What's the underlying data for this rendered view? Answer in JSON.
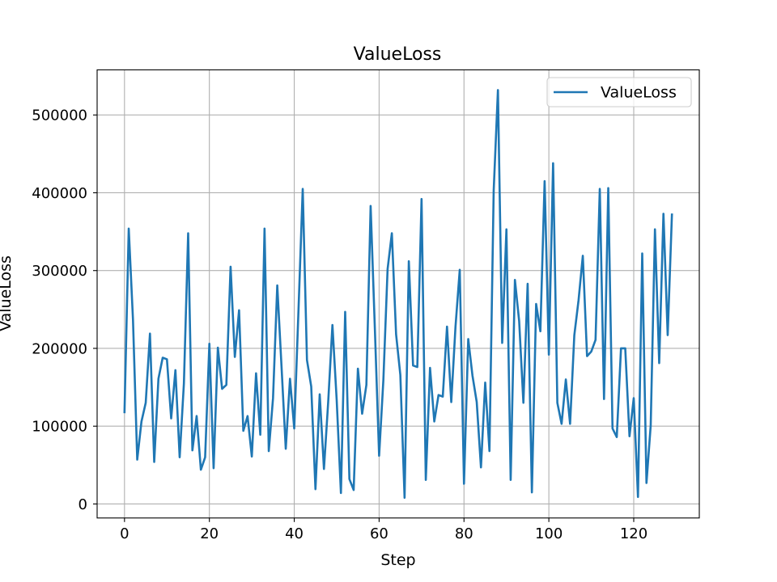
{
  "chart_data": {
    "type": "line",
    "title": "ValueLoss",
    "xlabel": "Step",
    "ylabel": "ValueLoss",
    "xlim": [
      -6.45,
      135.45
    ],
    "ylim": [
      -18000,
      558000
    ],
    "xticks": [
      0,
      20,
      40,
      60,
      80,
      100,
      120
    ],
    "yticks": [
      0,
      100000,
      200000,
      300000,
      400000,
      500000
    ],
    "grid": true,
    "legend": "top-right",
    "series": [
      {
        "name": "ValueLoss",
        "color": "#1f77b4",
        "values": [
          118000,
          354000,
          237000,
          57000,
          106000,
          130000,
          219000,
          54000,
          161000,
          188000,
          186000,
          110000,
          172000,
          60000,
          155000,
          348000,
          69000,
          113000,
          44000,
          60000,
          206000,
          46000,
          201000,
          148000,
          153000,
          305000,
          189000,
          249000,
          94000,
          113000,
          61000,
          168000,
          89000,
          354000,
          68000,
          136000,
          281000,
          177000,
          71000,
          161000,
          97000,
          249000,
          405000,
          185000,
          151000,
          19000,
          141000,
          45000,
          131000,
          230000,
          134000,
          14000,
          247000,
          32000,
          18000,
          174000,
          116000,
          153000,
          383000,
          225000,
          62000,
          159000,
          302000,
          348000,
          218000,
          166000,
          8000,
          312000,
          178000,
          176000,
          392000,
          31000,
          175000,
          106000,
          140000,
          138000,
          228000,
          131000,
          228000,
          301000,
          26000,
          212000,
          165000,
          131000,
          47000,
          156000,
          68000,
          403000,
          532000,
          207000,
          353000,
          31000,
          288000,
          235000,
          130000,
          283000,
          15000,
          257000,
          222000,
          415000,
          192000,
          438000,
          130000,
          103000,
          160000,
          103000,
          217000,
          262000,
          319000,
          190000,
          196000,
          211000,
          405000,
          135000,
          406000,
          97000,
          86000,
          200000,
          200000,
          87000,
          136000,
          9000,
          322000,
          27000,
          101000,
          353000,
          181000,
          373000,
          217000,
          372000
        ]
      }
    ]
  }
}
